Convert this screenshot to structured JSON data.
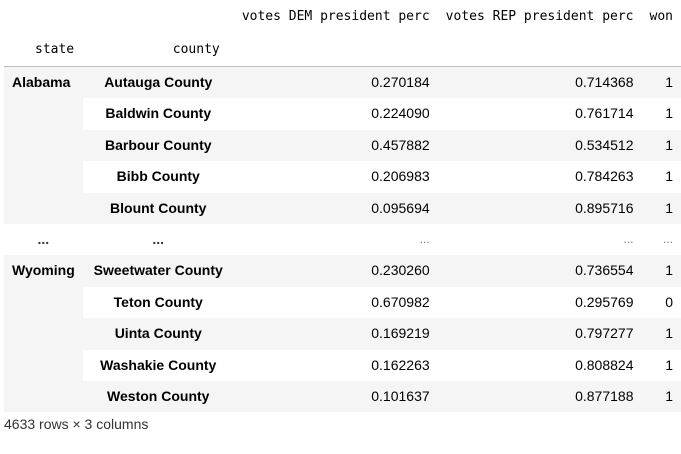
{
  "table": {
    "columns": [
      "votes DEM president perc",
      "votes REP president perc",
      "won"
    ],
    "index_names": [
      "state",
      "county"
    ],
    "groups": [
      {
        "state": "Alabama",
        "rows": [
          {
            "county": "Autauga County",
            "dem": "0.270184",
            "rep": "0.714368",
            "won": "1"
          },
          {
            "county": "Baldwin County",
            "dem": "0.224090",
            "rep": "0.761714",
            "won": "1"
          },
          {
            "county": "Barbour County",
            "dem": "0.457882",
            "rep": "0.534512",
            "won": "1"
          },
          {
            "county": "Bibb County",
            "dem": "0.206983",
            "rep": "0.784263",
            "won": "1"
          },
          {
            "county": "Blount County",
            "dem": "0.095694",
            "rep": "0.895716",
            "won": "1"
          }
        ]
      },
      {
        "state": "Wyoming",
        "rows": [
          {
            "county": "Sweetwater County",
            "dem": "0.230260",
            "rep": "0.736554",
            "won": "1"
          },
          {
            "county": "Teton County",
            "dem": "0.670982",
            "rep": "0.295769",
            "won": "0"
          },
          {
            "county": "Uinta County",
            "dem": "0.169219",
            "rep": "0.797277",
            "won": "1"
          },
          {
            "county": "Washakie County",
            "dem": "0.162263",
            "rep": "0.808824",
            "won": "1"
          },
          {
            "county": "Weston County",
            "dem": "0.101637",
            "rep": "0.877188",
            "won": "1"
          }
        ]
      }
    ],
    "ellipsis": {
      "index": "...",
      "value": "..."
    }
  },
  "caption": "4633 rows × 3 columns"
}
